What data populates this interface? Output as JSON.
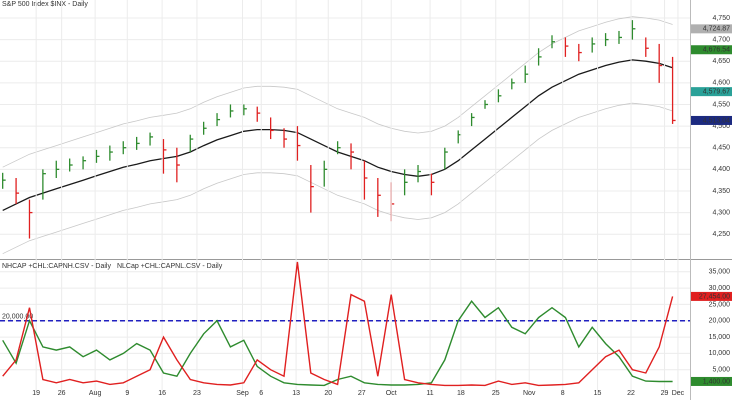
{
  "chart_data": [
    {
      "type": "ohlc",
      "title": "S&P 500 Index  $INX - Daily",
      "x": [
        0,
        1,
        2,
        3,
        4,
        5,
        6,
        7,
        8,
        9,
        10,
        11,
        12,
        13,
        14,
        15,
        16,
        17,
        18,
        19,
        20,
        21,
        22,
        23,
        24,
        25,
        26,
        27,
        28,
        29,
        30,
        31,
        32,
        33,
        34,
        35,
        36,
        37,
        38,
        39,
        40,
        41,
        42,
        43,
        44,
        45,
        46,
        47,
        48,
        49,
        50
      ],
      "close": [
        4375,
        4345,
        4300,
        4390,
        4400,
        4410,
        4420,
        4430,
        4440,
        4450,
        4460,
        4475,
        4445,
        4410,
        4470,
        4495,
        4515,
        4535,
        4540,
        4530,
        4490,
        4470,
        4455,
        4360,
        4400,
        4450,
        4440,
        4380,
        4340,
        4320,
        4370,
        4395,
        4370,
        4440,
        4480,
        4520,
        4550,
        4570,
        4600,
        4620,
        4660,
        4695,
        4685,
        4670,
        4690,
        4700,
        4705,
        4725,
        4680,
        4640,
        4513.04
      ],
      "high": [
        4392,
        4380,
        4330,
        4400,
        4420,
        4425,
        4430,
        4445,
        4455,
        4465,
        4475,
        4485,
        4470,
        4450,
        4480,
        4510,
        4530,
        4550,
        4550,
        4545,
        4520,
        4495,
        4500,
        4410,
        4420,
        4465,
        4460,
        4420,
        4380,
        4370,
        4400,
        4410,
        4390,
        4450,
        4490,
        4530,
        4560,
        4585,
        4610,
        4640,
        4680,
        4710,
        4705,
        4690,
        4705,
        4715,
        4720,
        4745,
        4705,
        4690,
        4660
      ],
      "low": [
        4355,
        4320,
        4240,
        4330,
        4380,
        4395,
        4400,
        4415,
        4420,
        4435,
        4445,
        4455,
        4390,
        4370,
        4440,
        4480,
        4500,
        4520,
        4525,
        4510,
        4470,
        4450,
        4420,
        4300,
        4360,
        4435,
        4400,
        4330,
        4290,
        4280,
        4340,
        4370,
        4340,
        4400,
        4460,
        4500,
        4540,
        4555,
        4585,
        4600,
        4640,
        4680,
        4660,
        4650,
        4670,
        4685,
        4690,
        4700,
        4660,
        4600,
        4505
      ],
      "up_color": "#2e8b2e",
      "down_color": "#e02020",
      "overlays": [
        {
          "color": "#1a1a1a",
          "values": [
            4305,
            4320,
            4335,
            4345,
            4355,
            4365,
            4375,
            4385,
            4395,
            4405,
            4412,
            4420,
            4425,
            4430,
            4440,
            4455,
            4468,
            4478,
            4488,
            4492,
            4492,
            4490,
            4485,
            4470,
            4455,
            4440,
            4430,
            4420,
            4405,
            4395,
            4388,
            4384,
            4388,
            4400,
            4420,
            4445,
            4470,
            4495,
            4520,
            4545,
            4570,
            4590,
            4605,
            4620,
            4630,
            4640,
            4648,
            4653,
            4650,
            4645,
            4635
          ]
        },
        {
          "color": "#c8c8c8",
          "values": [
            4405,
            4420,
            4435,
            4445,
            4455,
            4465,
            4475,
            4485,
            4495,
            4505,
            4512,
            4520,
            4525,
            4530,
            4540,
            4555,
            4568,
            4578,
            4588,
            4592,
            4592,
            4590,
            4585,
            4570,
            4555,
            4540,
            4530,
            4520,
            4505,
            4495,
            4488,
            4484,
            4488,
            4500,
            4520,
            4545,
            4570,
            4595,
            4620,
            4645,
            4670,
            4690,
            4705,
            4720,
            4730,
            4740,
            4748,
            4753,
            4750,
            4745,
            4735
          ]
        },
        {
          "color": "#c8c8c8",
          "values": [
            4205,
            4220,
            4235,
            4245,
            4255,
            4265,
            4275,
            4285,
            4295,
            4305,
            4312,
            4320,
            4325,
            4330,
            4340,
            4355,
            4368,
            4378,
            4388,
            4392,
            4392,
            4390,
            4385,
            4370,
            4355,
            4340,
            4330,
            4320,
            4305,
            4295,
            4288,
            4284,
            4288,
            4300,
            4320,
            4345,
            4370,
            4395,
            4420,
            4445,
            4470,
            4490,
            4505,
            4520,
            4530,
            4540,
            4548,
            4553,
            4550,
            4545,
            4535
          ]
        }
      ],
      "xlim": [
        -0.2,
        51.3
      ],
      "ylim": [
        4195,
        4780
      ],
      "yticks": [
        {
          "value": 4250,
          "label": "4,250"
        },
        {
          "value": 4300,
          "label": "4,300"
        },
        {
          "value": 4350,
          "label": "4,350"
        },
        {
          "value": 4400,
          "label": "4,400"
        },
        {
          "value": 4450,
          "label": "4,450"
        },
        {
          "value": 4500,
          "label": "4,500"
        },
        {
          "value": 4550,
          "label": "4,550"
        },
        {
          "value": 4600,
          "label": "4,600"
        },
        {
          "value": 4650,
          "label": "4,650"
        },
        {
          "value": 4700,
          "label": "4,700"
        },
        {
          "value": 4750,
          "label": "4,750"
        }
      ],
      "tags": [
        {
          "value": 4724.87,
          "label": "4,724.87",
          "color": "#b0b0b0"
        },
        {
          "value": 4676.54,
          "label": "4,676.54",
          "color": "#2e8b2e"
        },
        {
          "value": 4579.67,
          "label": "4,579.67",
          "color": "#2aa198"
        },
        {
          "value": 4513.04,
          "label": "4,513.04",
          "color": "#1c2a80"
        }
      ],
      "grid": true
    },
    {
      "type": "line",
      "series": [
        {
          "name": "NHCAP  +CHL:CAPNH.CSV - Daily",
          "color": "#2e8b2e",
          "values": [
            14000,
            7000,
            20000,
            12000,
            11000,
            12000,
            9000,
            11000,
            8000,
            10000,
            13000,
            11000,
            4000,
            3000,
            10000,
            16000,
            20000,
            12000,
            14000,
            6000,
            3000,
            1000,
            500,
            300,
            200,
            2000,
            3000,
            1000,
            500,
            300,
            300,
            500,
            1000,
            8000,
            20000,
            26000,
            21000,
            24000,
            18000,
            16000,
            21000,
            24000,
            21000,
            12000,
            18000,
            13000,
            9000,
            3000,
            1500,
            1400,
            1400
          ]
        },
        {
          "name": "NLCap  +CHL:CAPNL.CSV - Daily",
          "color": "#e02020",
          "values": [
            3000,
            8000,
            24000,
            2000,
            1000,
            2000,
            1000,
            1500,
            500,
            1000,
            3000,
            5000,
            15000,
            8000,
            2000,
            1000,
            500,
            300,
            1000,
            8000,
            5000,
            3000,
            38000,
            4000,
            2000,
            500,
            28000,
            26000,
            3000,
            28000,
            2000,
            1000,
            500,
            200,
            200,
            300,
            200,
            1500,
            500,
            1000,
            200,
            300,
            500,
            1000,
            5000,
            9000,
            11000,
            5000,
            4000,
            12000,
            27454
          ]
        }
      ],
      "xlim": [
        -0.2,
        51.3
      ],
      "ylim": [
        -2750,
        38000
      ],
      "xticks": [
        {
          "value": 2.5,
          "label": "19"
        },
        {
          "value": 4.4,
          "label": "26"
        },
        {
          "value": 6.9,
          "label": "Aug"
        },
        {
          "value": 9.3,
          "label": "9"
        },
        {
          "value": 11.9,
          "label": "16"
        },
        {
          "value": 14.5,
          "label": "23"
        },
        {
          "value": 17.9,
          "label": "Sep"
        },
        {
          "value": 19.3,
          "label": "6"
        },
        {
          "value": 21.9,
          "label": "13"
        },
        {
          "value": 24.3,
          "label": "20"
        },
        {
          "value": 26.8,
          "label": "27"
        },
        {
          "value": 29.0,
          "label": "Oct"
        },
        {
          "value": 31.9,
          "label": "11"
        },
        {
          "value": 34.2,
          "label": "18"
        },
        {
          "value": 36.8,
          "label": "25"
        },
        {
          "value": 39.3,
          "label": "Nov"
        },
        {
          "value": 41.8,
          "label": "8"
        },
        {
          "value": 44.4,
          "label": "15"
        },
        {
          "value": 46.9,
          "label": "22"
        },
        {
          "value": 49.4,
          "label": "29"
        },
        {
          "value": 50.4,
          "label": "Dec"
        }
      ],
      "yticks": [
        {
          "value": 5000,
          "label": "5,000"
        },
        {
          "value": 10000,
          "label": "10,000"
        },
        {
          "value": 15000,
          "label": "15,000"
        },
        {
          "value": 20000,
          "label": "20,000"
        },
        {
          "value": 25000,
          "label": "25,000"
        },
        {
          "value": 30000,
          "label": "30,000"
        },
        {
          "value": 35000,
          "label": "35,000"
        }
      ],
      "hline": {
        "value": 20000,
        "label": "20,000.00",
        "color": "#2020c0"
      },
      "tags": [
        {
          "value": 27454,
          "label": "27,454.00",
          "color": "#e02020"
        },
        {
          "value": 1400,
          "label": "1,400.00",
          "color": "#2e8b2e"
        }
      ],
      "grid": true
    }
  ]
}
